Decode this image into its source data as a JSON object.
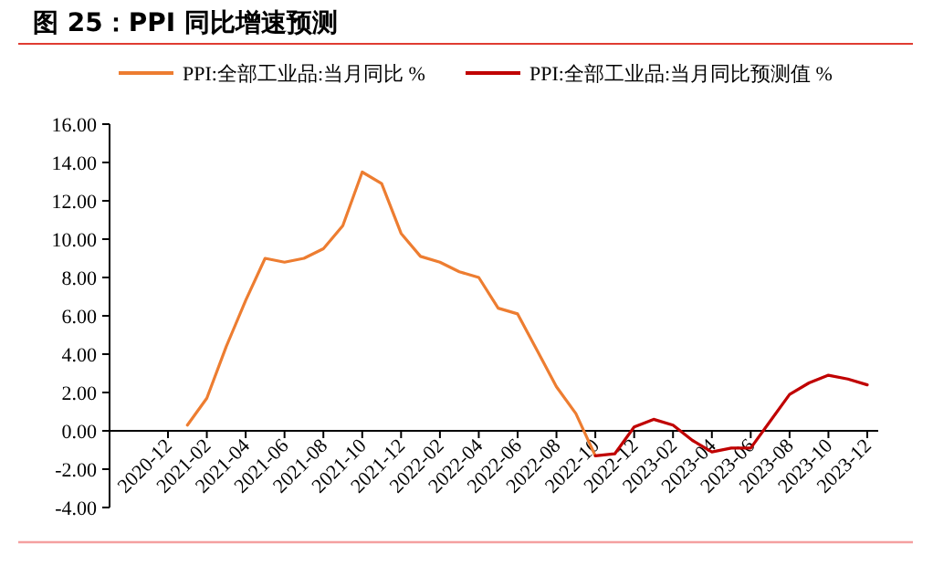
{
  "chart_data": {
    "type": "line",
    "title": "图 25：PPI 同比增速预测",
    "categories": [
      "2020-12",
      null,
      "2021-02",
      null,
      "2021-04",
      null,
      "2021-06",
      null,
      "2021-08",
      null,
      "2021-10",
      null,
      "2021-12",
      null,
      "2022-02",
      null,
      "2022-04",
      null,
      "2022-06",
      null,
      "2022-08",
      null,
      "2022-10",
      null,
      "2022-12",
      null,
      "2023-02",
      null,
      "2023-04",
      null,
      "2023-06",
      null,
      "2023-08",
      null,
      "2023-10",
      null,
      "2023-12"
    ],
    "series": [
      {
        "name": "PPI:全部工业品:当月同比 %",
        "color": "#ed7d31",
        "values": [
          null,
          0.3,
          1.7,
          4.4,
          6.8,
          9.0,
          8.8,
          9.0,
          9.5,
          10.7,
          13.5,
          12.9,
          10.3,
          9.1,
          8.8,
          8.3,
          8.0,
          6.4,
          6.1,
          4.2,
          2.3,
          0.9,
          -1.3,
          null,
          null,
          null,
          null,
          null,
          null,
          null,
          null,
          null,
          null,
          null,
          null,
          null,
          null
        ]
      },
      {
        "name": "PPI:全部工业品:当月同比预测值 %",
        "color": "#c00000",
        "values": [
          null,
          null,
          null,
          null,
          null,
          null,
          null,
          null,
          null,
          null,
          null,
          null,
          null,
          null,
          null,
          null,
          null,
          null,
          null,
          null,
          null,
          null,
          -1.3,
          -1.2,
          0.2,
          0.6,
          0.3,
          -0.5,
          -1.1,
          -0.9,
          -0.9,
          0.5,
          1.9,
          2.5,
          2.9,
          2.7,
          2.4
        ]
      }
    ],
    "ylim": [
      -4,
      16
    ],
    "yticks": [
      {
        "value": -4,
        "label": "-4.00"
      },
      {
        "value": -2,
        "label": "-2.00"
      },
      {
        "value": 0,
        "label": "0.00"
      },
      {
        "value": 2,
        "label": "2.00"
      },
      {
        "value": 4,
        "label": "4.00"
      },
      {
        "value": 6,
        "label": "6.00"
      },
      {
        "value": 8,
        "label": "8.00"
      },
      {
        "value": 10,
        "label": "10.00"
      },
      {
        "value": 12,
        "label": "12.00"
      },
      {
        "value": 14,
        "label": "14.00"
      },
      {
        "value": 16,
        "label": "16.00"
      }
    ],
    "legend": "top",
    "grid": false
  }
}
